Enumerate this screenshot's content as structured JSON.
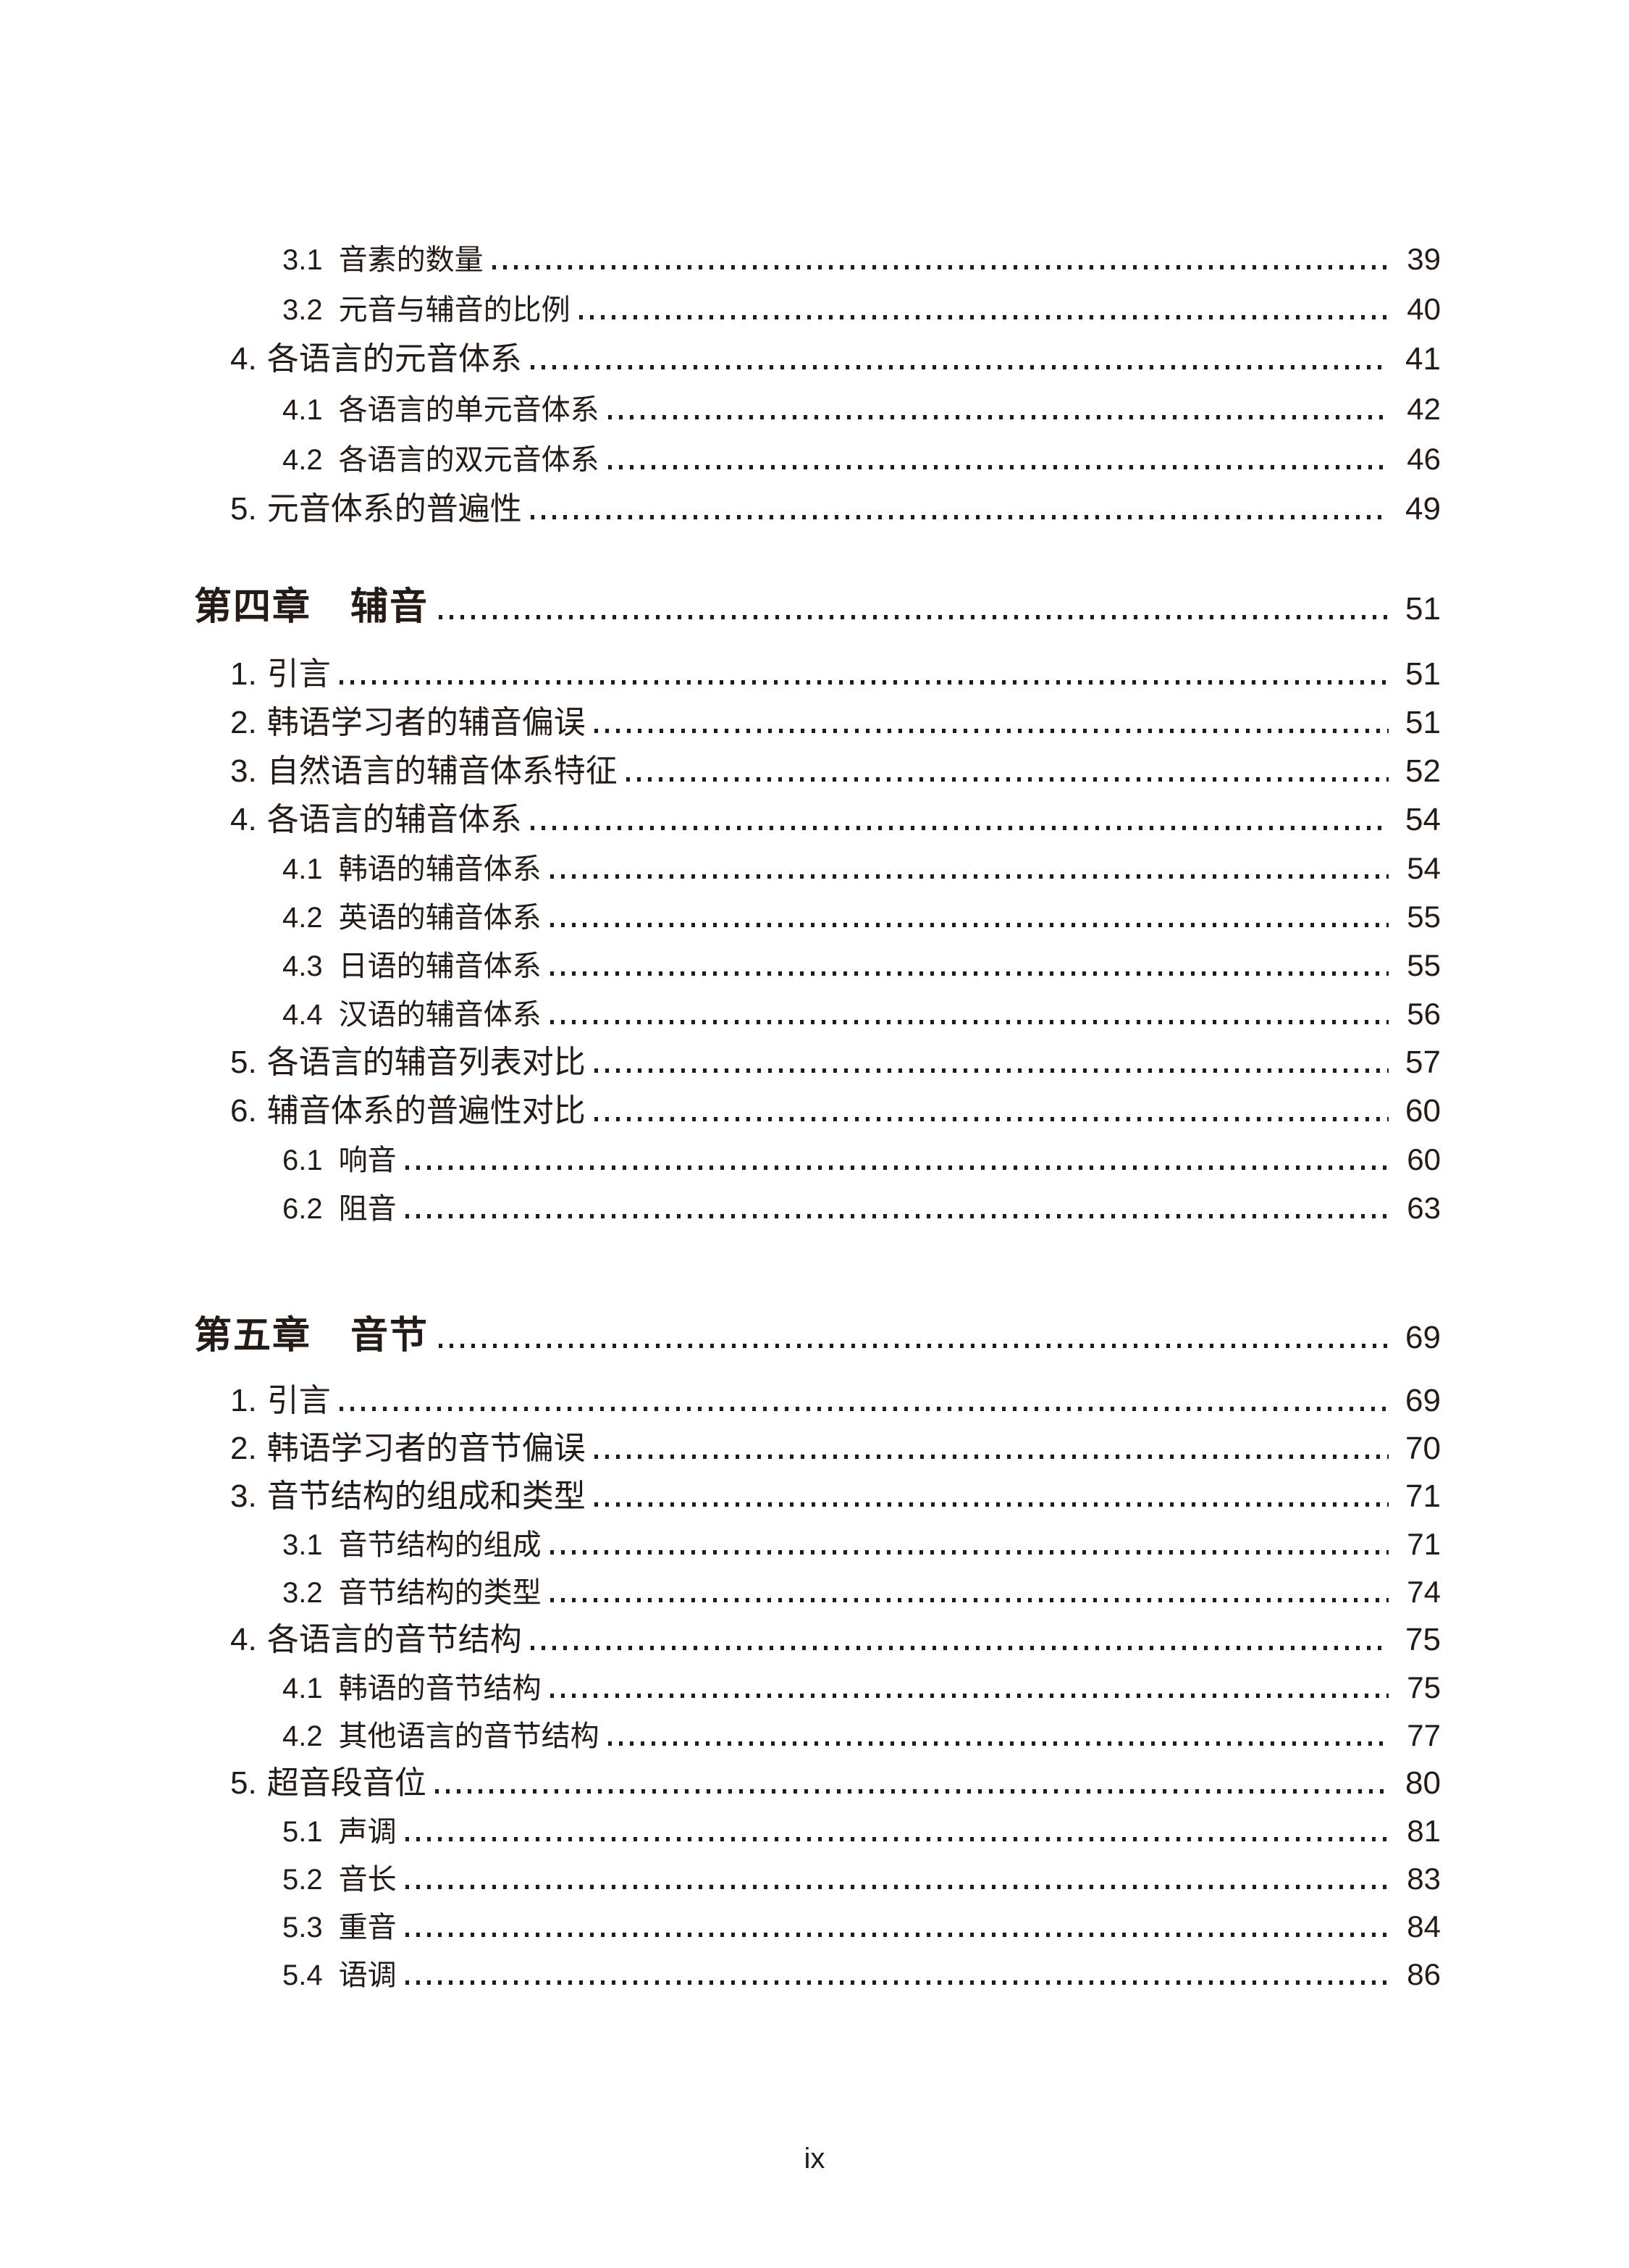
{
  "page": {
    "footer_page_number": "ix",
    "text_color": "#241a16",
    "background_color": "#ffffff"
  },
  "toc": {
    "sections": [
      {
        "type": "entries",
        "rows": [
          {
            "level": 2,
            "num": "3.1",
            "title": "音素的数量",
            "page": "39"
          },
          {
            "level": 2,
            "num": "3.2",
            "title": "元音与辅音的比例",
            "page": "40"
          },
          {
            "level": 1,
            "num": "4.",
            "title": "各语言的元音体系",
            "page": "41"
          },
          {
            "level": 2,
            "num": "4.1",
            "title": "各语言的单元音体系",
            "page": "42"
          },
          {
            "level": 2,
            "num": "4.2",
            "title": "各语言的双元音体系",
            "page": "46"
          },
          {
            "level": 1,
            "num": "5.",
            "title": "元音体系的普遍性",
            "page": "49"
          }
        ]
      },
      {
        "type": "chapter",
        "chapter_label": "第四章",
        "chapter_title": "辅音",
        "page": "51",
        "rows": [
          {
            "level": 1,
            "num": "1.",
            "title": "引言",
            "page": "51"
          },
          {
            "level": 1,
            "num": "2.",
            "title": "韩语学习者的辅音偏误",
            "page": "51"
          },
          {
            "level": 1,
            "num": "3.",
            "title": "自然语言的辅音体系特征",
            "page": "52"
          },
          {
            "level": 1,
            "num": "4.",
            "title": "各语言的辅音体系",
            "page": "54"
          },
          {
            "level": 2,
            "num": "4.1",
            "title": "韩语的辅音体系",
            "page": "54"
          },
          {
            "level": 2,
            "num": "4.2",
            "title": "英语的辅音体系",
            "page": "55"
          },
          {
            "level": 2,
            "num": "4.3",
            "title": "日语的辅音体系",
            "page": "55"
          },
          {
            "level": 2,
            "num": "4.4",
            "title": "汉语的辅音体系",
            "page": "56"
          },
          {
            "level": 1,
            "num": "5.",
            "title": "各语言的辅音列表对比",
            "page": "57"
          },
          {
            "level": 1,
            "num": "6.",
            "title": "辅音体系的普遍性对比",
            "page": "60"
          },
          {
            "level": 2,
            "num": "6.1",
            "title": "响音",
            "page": "60"
          },
          {
            "level": 2,
            "num": "6.2",
            "title": "阻音",
            "page": "63"
          }
        ]
      },
      {
        "type": "chapter",
        "chapter_label": "第五章",
        "chapter_title": "音节",
        "page": "69",
        "rows": [
          {
            "level": 1,
            "num": "1.",
            "title": "引言",
            "page": "69"
          },
          {
            "level": 1,
            "num": "2.",
            "title": "韩语学习者的音节偏误",
            "page": "70"
          },
          {
            "level": 1,
            "num": "3.",
            "title": "音节结构的组成和类型",
            "page": "71"
          },
          {
            "level": 2,
            "num": "3.1",
            "title": "音节结构的组成",
            "page": "71"
          },
          {
            "level": 2,
            "num": "3.2",
            "title": "音节结构的类型",
            "page": "74"
          },
          {
            "level": 1,
            "num": "4.",
            "title": "各语言的音节结构",
            "page": "75"
          },
          {
            "level": 2,
            "num": "4.1",
            "title": "韩语的音节结构",
            "page": "75"
          },
          {
            "level": 2,
            "num": "4.2",
            "title": "其他语言的音节结构",
            "page": "77"
          },
          {
            "level": 1,
            "num": "5.",
            "title": "超音段音位",
            "page": "80"
          },
          {
            "level": 2,
            "num": "5.1",
            "title": "声调",
            "page": "81"
          },
          {
            "level": 2,
            "num": "5.2",
            "title": "音长",
            "page": "83"
          },
          {
            "level": 2,
            "num": "5.3",
            "title": "重音",
            "page": "84"
          },
          {
            "level": 2,
            "num": "5.4",
            "title": "语调",
            "page": "86"
          }
        ]
      }
    ]
  }
}
